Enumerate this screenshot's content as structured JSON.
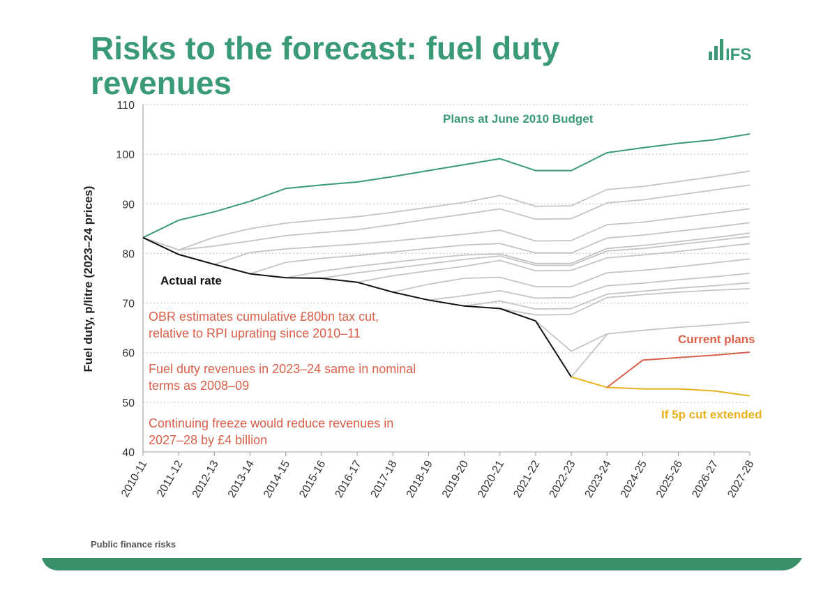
{
  "chart_data": {
    "type": "line",
    "title": "Risks to the forecast: fuel duty revenues",
    "logo": "IFS",
    "footer": "Public finance risks",
    "ylabel": "Fuel duty, p/litre (2023–24 prices)",
    "categories": [
      "2010-11",
      "2011-12",
      "2012-13",
      "2013-14",
      "2014-15",
      "2015-16",
      "2016-17",
      "2017-18",
      "2018-19",
      "2019-20",
      "2020-21",
      "2021-22",
      "2022-23",
      "2023-24",
      "2024-25",
      "2025-26",
      "2026-27",
      "2027-28"
    ],
    "ylim": [
      40,
      110
    ],
    "yticks": [
      40,
      50,
      60,
      70,
      80,
      90,
      100,
      110
    ],
    "grid": true,
    "annotations": [
      "OBR estimates cumulative £80bn tax cut, relative to RPI uprating since 2010–11",
      "Fuel duty revenues in 2023–24 same in nominal terms as 2008–09",
      "Continuing freeze would reduce revenues in 2027–28 by £4 billion"
    ],
    "annotation_color": "#d9604a",
    "series": [
      {
        "color": "#c4c4c4",
        "values": [
          83.2,
          80.7,
          83.3,
          85.0,
          86.1,
          86.8,
          87.4,
          88.3,
          89.3,
          90.3,
          91.7,
          89.5,
          89.6,
          92.9,
          93.5,
          94.5,
          95.5,
          96.6
        ]
      },
      {
        "color": "#c4c4c4",
        "values": [
          83.2,
          80.7,
          81.5,
          82.5,
          83.6,
          84.2,
          84.8,
          85.8,
          86.9,
          87.9,
          89.0,
          86.9,
          87.0,
          90.2,
          90.8,
          91.8,
          92.8,
          93.8
        ]
      },
      {
        "color": "#c4c4c4",
        "values": [
          null,
          null,
          77.8,
          80.2,
          80.9,
          81.4,
          81.9,
          82.5,
          83.2,
          83.9,
          84.7,
          82.5,
          82.6,
          85.8,
          86.3,
          87.2,
          88.1,
          89.0
        ]
      },
      {
        "color": "#c4c4c4",
        "values": [
          null,
          null,
          null,
          75.9,
          78.2,
          79.0,
          79.6,
          80.3,
          81.0,
          81.7,
          82.0,
          80.1,
          80.1,
          83.1,
          83.7,
          84.5,
          85.3,
          86.2
        ]
      },
      {
        "color": "#c4c4c4",
        "values": [
          null,
          null,
          null,
          null,
          75.1,
          76.4,
          77.4,
          78.2,
          79.0,
          79.7,
          79.9,
          78.0,
          78.0,
          81.0,
          81.6,
          82.4,
          83.2,
          84.1
        ]
      },
      {
        "color": "#c4c4c4",
        "values": [
          null,
          null,
          null,
          null,
          null,
          75.0,
          76.1,
          77.0,
          77.9,
          78.8,
          79.5,
          77.6,
          77.6,
          80.5,
          81.0,
          81.8,
          82.6,
          83.4
        ]
      },
      {
        "color": "#c4c4c4",
        "values": [
          null,
          null,
          null,
          null,
          null,
          null,
          74.2,
          75.5,
          76.5,
          77.4,
          78.6,
          76.5,
          76.6,
          79.1,
          79.7,
          80.4,
          81.2,
          82.0
        ]
      },
      {
        "color": "#c4c4c4",
        "values": [
          null,
          null,
          null,
          null,
          null,
          null,
          null,
          72.2,
          73.8,
          75.0,
          75.2,
          73.3,
          73.3,
          76.1,
          76.6,
          77.3,
          78.1,
          78.9
        ]
      },
      {
        "color": "#c4c4c4",
        "values": [
          null,
          null,
          null,
          null,
          null,
          null,
          null,
          null,
          70.6,
          71.5,
          72.5,
          71.0,
          71.1,
          73.5,
          74.0,
          74.7,
          75.3,
          76.0
        ]
      },
      {
        "color": "#c4c4c4",
        "values": [
          null,
          null,
          null,
          null,
          null,
          null,
          null,
          null,
          null,
          69.4,
          70.4,
          68.8,
          68.9,
          71.8,
          72.4,
          73.0,
          73.5,
          74.1
        ]
      },
      {
        "color": "#c4c4c4",
        "values": [
          null,
          null,
          null,
          null,
          null,
          null,
          null,
          null,
          null,
          null,
          68.9,
          67.6,
          67.7,
          71.1,
          71.7,
          72.2,
          72.6,
          72.9
        ]
      },
      {
        "color": "#c4c4c4",
        "values": [
          null,
          null,
          null,
          null,
          null,
          null,
          null,
          null,
          null,
          null,
          null,
          66.4,
          60.3,
          63.8,
          64.5,
          65.1,
          65.6,
          66.2
        ]
      },
      {
        "color": "#c4c4c4",
        "values": [
          null,
          null,
          null,
          null,
          null,
          null,
          null,
          null,
          null,
          null,
          null,
          null,
          55.1,
          63.7,
          null,
          null,
          null,
          null
        ]
      },
      {
        "name": "Plans at June 2010 Budget",
        "color": "#3a9a76",
        "values": [
          83.2,
          86.7,
          88.4,
          90.5,
          93.1,
          93.8,
          94.4,
          95.5,
          96.7,
          97.9,
          99.1,
          96.7,
          96.7,
          100.3,
          101.3,
          102.2,
          102.9,
          104.1
        ]
      },
      {
        "name": "Actual rate",
        "color": "#111111",
        "values": [
          83.2,
          79.8,
          77.8,
          75.9,
          75.1,
          75.0,
          74.2,
          72.2,
          70.6,
          69.4,
          68.9,
          66.4,
          55.1,
          null,
          null,
          null,
          null,
          null
        ]
      },
      {
        "name": "If 5p cut extended",
        "color": "#e8b21c",
        "values": [
          null,
          null,
          null,
          null,
          null,
          null,
          null,
          null,
          null,
          null,
          null,
          null,
          55.1,
          53.0,
          52.7,
          52.7,
          52.3,
          51.3
        ]
      },
      {
        "name": "Current plans",
        "color": "#d9604a",
        "values": [
          null,
          null,
          null,
          null,
          null,
          null,
          null,
          null,
          null,
          null,
          null,
          null,
          null,
          53.0,
          58.5,
          59.0,
          59.5,
          60.1
        ]
      }
    ]
  }
}
